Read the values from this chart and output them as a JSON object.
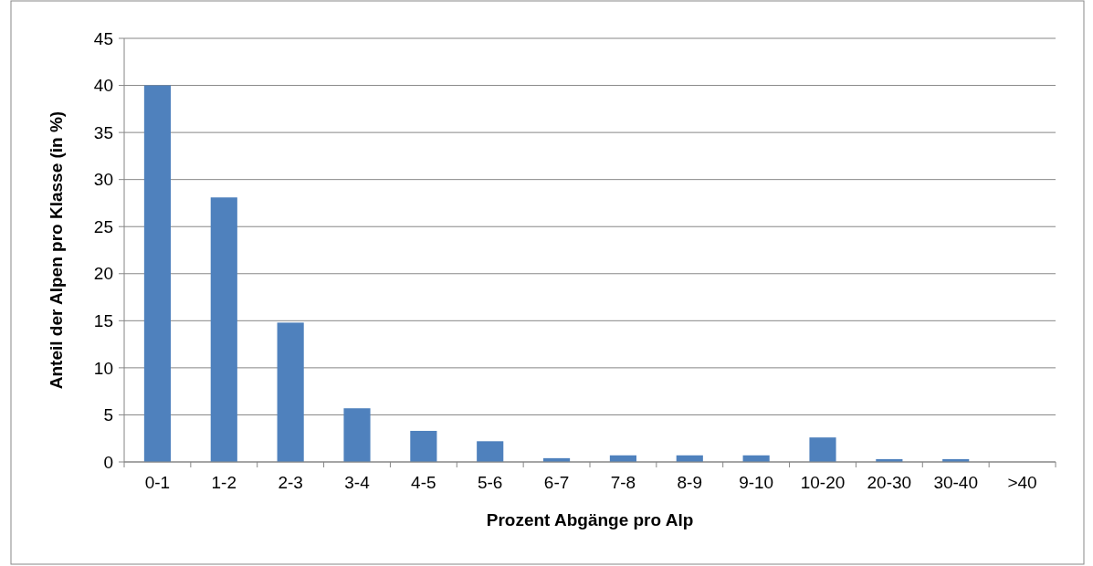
{
  "chart_data": {
    "type": "bar",
    "xlabel": "Prozent Abgänge pro Alp",
    "ylabel": "Anteil der Alpen pro Klasse (in %)",
    "categories": [
      "0-1",
      "1-2",
      "2-3",
      "3-4",
      "4-5",
      "5-6",
      "6-7",
      "7-8",
      "8-9",
      "9-10",
      "10-20",
      "20-30",
      "30-40",
      ">40"
    ],
    "values": [
      40,
      28.1,
      14.8,
      5.7,
      3.3,
      2.2,
      0.4,
      0.7,
      0.7,
      0.7,
      2.6,
      0.3,
      0.3,
      0
    ],
    "color": "#4f81bd",
    "ylim": [
      0,
      45
    ],
    "yticks": [
      0,
      5,
      10,
      15,
      20,
      25,
      30,
      35,
      40,
      45
    ],
    "grid": "y"
  }
}
